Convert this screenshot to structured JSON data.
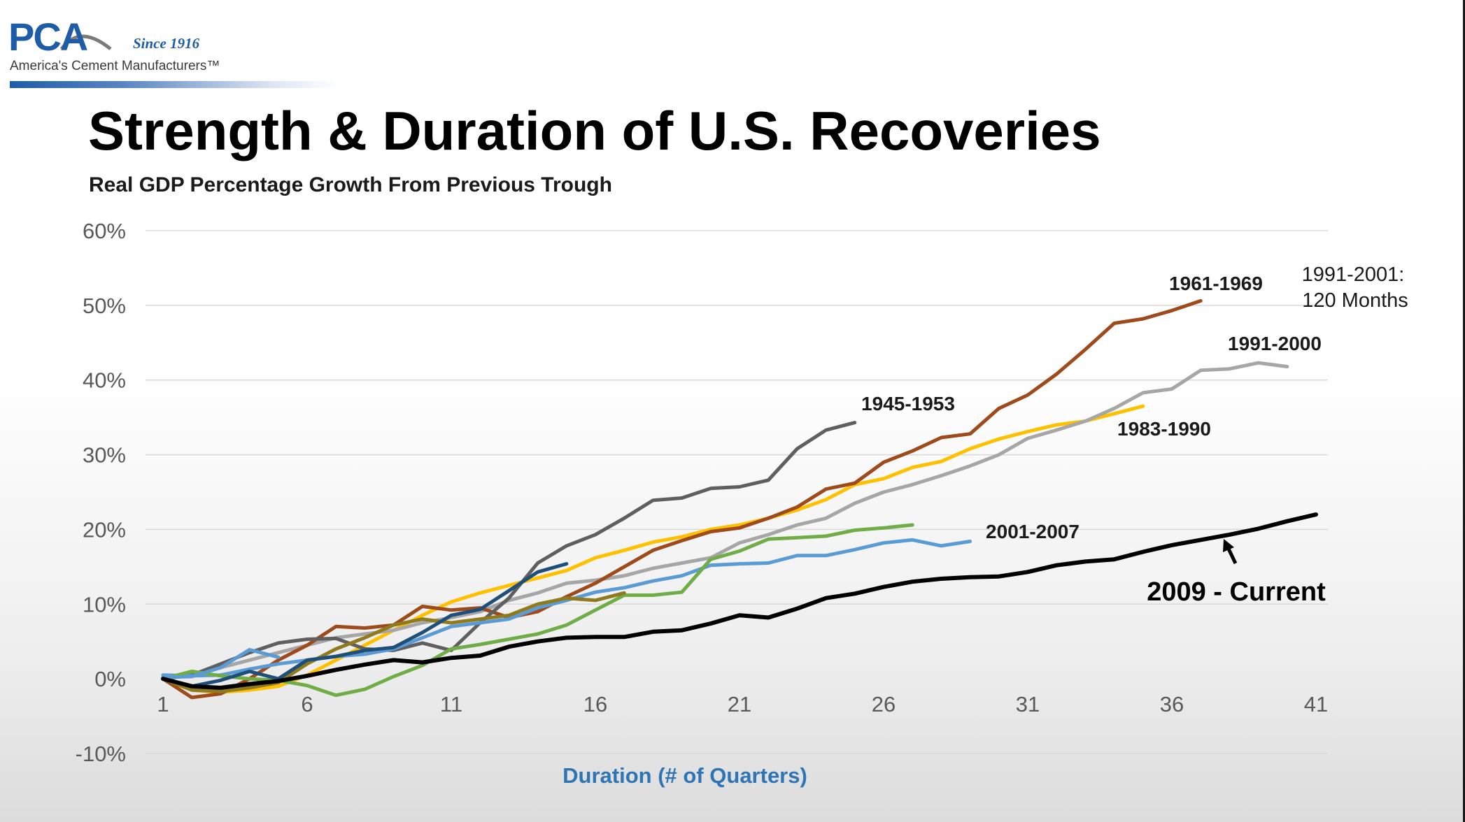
{
  "logo": {
    "mark": "PCA",
    "since": "Since 1916",
    "tagline": "America's Cement Manufacturers™"
  },
  "slide": {
    "title": "Strength & Duration of U.S. Recoveries"
  },
  "colors": {
    "1945-1953": "#5f5f5f",
    "1961-1969": "#9e4a1a",
    "1983-1990": "#ffc000",
    "1991-2000": "#a6a6a6",
    "2001-2007": "#5b9bd5",
    "2009 - Current": "#000000",
    "early_blue": "#1f4e79",
    "early_olive": "#8f7a1e",
    "early_green": "#70ad47",
    "axis_title": "#2e75b6",
    "tick": "#595959",
    "grid": "#d9d9d9"
  },
  "chart_data": {
    "type": "line",
    "title": "Real GDP Percentage Growth From Previous Trough",
    "xlabel": "Duration (# of Quarters)",
    "ylabel": "",
    "xlim": [
      1,
      41
    ],
    "ylim": [
      -10,
      60
    ],
    "x_ticks": [
      "1",
      "6",
      "11",
      "16",
      "21",
      "26",
      "31",
      "36",
      "41"
    ],
    "y_ticks": [
      "-10%",
      "0%",
      "10%",
      "20%",
      "30%",
      "40%",
      "50%",
      "60%"
    ],
    "grid": true,
    "legend": "none (series labeled inline)",
    "series": [
      {
        "name": "1983-1990",
        "color_key": "1983-1990",
        "label": "1983-1990",
        "x_start": 1,
        "values": [
          0,
          -1.5,
          -1.8,
          -1.5,
          -1,
          0.5,
          2.5,
          4.5,
          6.5,
          8.5,
          10.3,
          11.5,
          12.5,
          13.5,
          14.5,
          16.2,
          17.2,
          18.3,
          19,
          20,
          20.6,
          21.5,
          22.6,
          24,
          26,
          26.8,
          28.3,
          29.1,
          30.8,
          32.1,
          33.1,
          34,
          34.5,
          35.5,
          36.5
        ]
      },
      {
        "name": "1991-2000",
        "color_key": "1991-2000",
        "label": "1991-2000",
        "x_start": 1,
        "values": [
          0,
          0.5,
          1.5,
          2.5,
          3.5,
          4.5,
          5.5,
          6,
          6.5,
          7.5,
          8.2,
          9,
          10.5,
          11.5,
          12.8,
          13.2,
          13.8,
          14.8,
          15.5,
          16.2,
          18.2,
          19.3,
          20.6,
          21.5,
          23.5,
          25,
          26,
          27.2,
          28.5,
          30,
          32.2,
          33.3,
          34.5,
          36.2,
          38.3,
          38.8,
          41.3,
          41.5,
          42.3,
          41.8
        ]
      },
      {
        "name": "1961-1969",
        "color_key": "1961-1969",
        "label": "1961-1969",
        "x_start": 1,
        "values": [
          0,
          -2.5,
          -2,
          0,
          2.5,
          4.5,
          7,
          6.8,
          7.2,
          9.7,
          9.2,
          9.5,
          8.2,
          9,
          11,
          12.8,
          15,
          17.2,
          18.5,
          19.7,
          20.2,
          21.5,
          23,
          25.4,
          26.2,
          29,
          30.5,
          32.3,
          32.8,
          36.2,
          38,
          40.8,
          44.1,
          47.6,
          48.2,
          49.3,
          50.6
        ]
      },
      {
        "name": "1945-1953",
        "color_key": "1945-1953",
        "label": "1945-1953",
        "x_start": 1,
        "values": [
          0,
          0.5,
          2,
          3.5,
          4.8,
          5.3,
          5.4,
          4,
          3.8,
          4.8,
          3.8,
          7.5,
          10.8,
          15.5,
          17.8,
          19.3,
          21.5,
          23.9,
          24.2,
          25.5,
          25.7,
          26.6,
          30.8,
          33.3,
          34.3
        ]
      },
      {
        "name": "2001-2007",
        "color_key": "2001-2007",
        "label": "2001-2007",
        "x_start": 1,
        "values": [
          0.5,
          0.4,
          0.5,
          1.3,
          2,
          2.5,
          3,
          3.3,
          4,
          5.5,
          7,
          7.5,
          8,
          9.5,
          10.5,
          11.6,
          12.2,
          13.1,
          13.8,
          15.2,
          15.4,
          15.5,
          16.5,
          16.5,
          17.3,
          18.2,
          18.6,
          17.8,
          18.4
        ]
      },
      {
        "name": "",
        "color_key": "early_green",
        "x_start": 1,
        "values": [
          0,
          1,
          0.4,
          0,
          -0.2,
          -0.9,
          -2.2,
          -1.4,
          0.3,
          1.8,
          4,
          4.6,
          5.3,
          6,
          7.2,
          9.2,
          11.2,
          11.2,
          11.6,
          16,
          17.1,
          18.7,
          18.9,
          19.1,
          19.9,
          20.2,
          20.6
        ]
      },
      {
        "name": "",
        "color_key": "early_olive",
        "x_start": 1,
        "values": [
          0,
          -1.5,
          -1.7,
          -1.2,
          -0.5,
          2,
          4,
          5.5,
          7.2,
          8,
          7.5,
          8,
          8.5,
          10,
          10.8,
          10.5,
          11.5
        ]
      },
      {
        "name": "",
        "color_key": "early_blue",
        "x_start": 1,
        "values": [
          0,
          -1,
          -0.2,
          1,
          0,
          2.5,
          3,
          3.8,
          4.2,
          6.2,
          8.5,
          9.3,
          11.8,
          14.3,
          15.4
        ]
      },
      {
        "name": "",
        "color_key": "2001-2007",
        "x_start": 1,
        "values": [
          0.2,
          0.3,
          1.5,
          3.9,
          2.9
        ]
      },
      {
        "name": "2009 - Current",
        "color_key": "2009 - Current",
        "label": "2009 - Current",
        "x_start": 1,
        "values": [
          0,
          -1,
          -1.2,
          -0.7,
          -0.3,
          0.4,
          1.2,
          1.9,
          2.5,
          2.2,
          2.8,
          3.1,
          4.3,
          5,
          5.5,
          5.6,
          5.6,
          6.3,
          6.5,
          7.4,
          8.5,
          8.2,
          9.4,
          10.8,
          11.4,
          12.3,
          13,
          13.4,
          13.6,
          13.7,
          14.3,
          15.2,
          15.7,
          16,
          17,
          17.9,
          18.6,
          19.3,
          20.1,
          21.1,
          22
        ]
      }
    ],
    "annotations": [
      {
        "text": "1961-1969",
        "bold": true
      },
      {
        "text_lines": [
          "1991-2001:",
          "120 Months"
        ],
        "bold": false
      },
      {
        "text": "1991-2000",
        "bold": true
      },
      {
        "text": "1945-1953",
        "bold": true
      },
      {
        "text": "1983-1990",
        "bold": true
      },
      {
        "text": "2001-2007",
        "bold": true
      },
      {
        "text": "2009 - Current",
        "bold": true,
        "with_arrow": true
      }
    ]
  }
}
